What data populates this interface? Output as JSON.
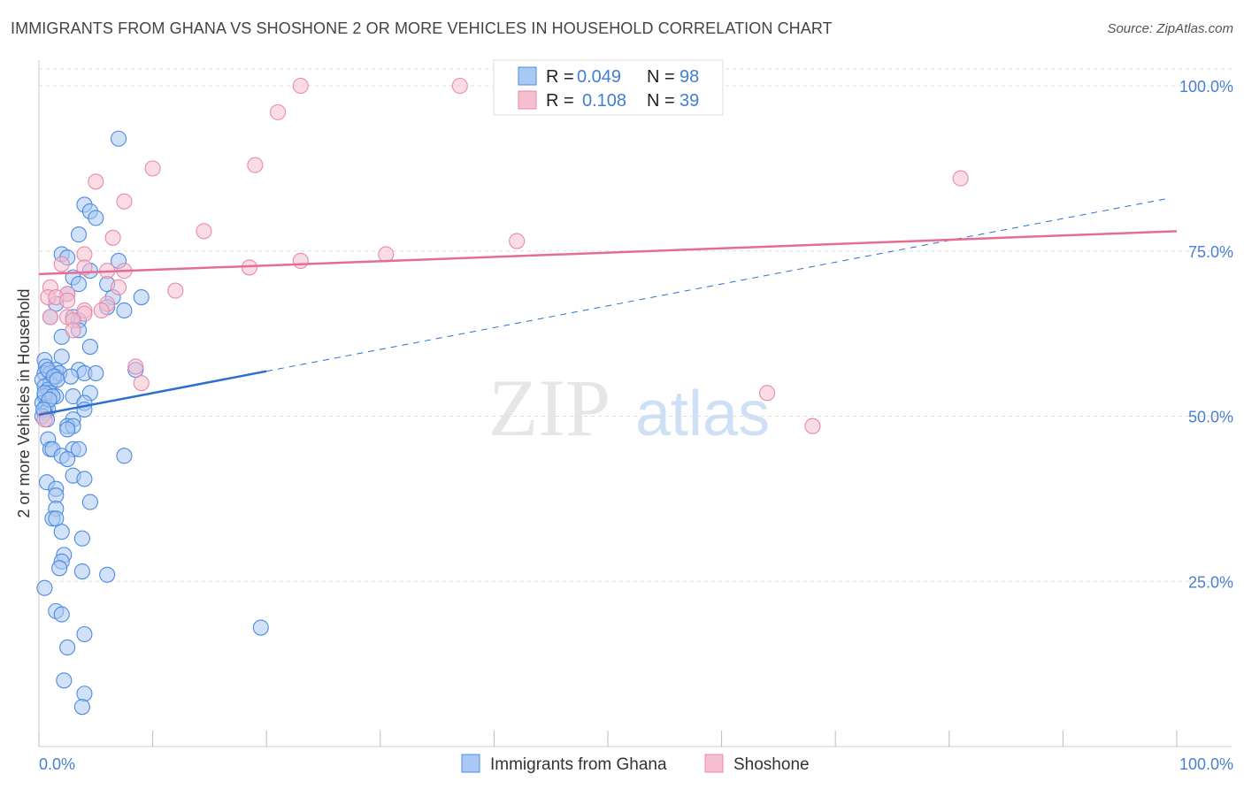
{
  "title": "IMMIGRANTS FROM GHANA VS SHOSHONE 2 OR MORE VEHICLES IN HOUSEHOLD CORRELATION CHART",
  "source": "Source: ZipAtlas.com",
  "watermark": {
    "zip": "ZIP",
    "atlas": "atlas"
  },
  "colors": {
    "blue_fill": "#a9c8f3",
    "blue_stroke": "#4d8be0",
    "blue_line": "#2c6fd1",
    "pink_fill": "#f6bfd0",
    "pink_stroke": "#e98aa9",
    "pink_line": "#e46d98",
    "grid": "#dddddd",
    "tick_label": "#4a7fd0"
  },
  "legend": {
    "r_label": "R =",
    "n_label": "N =",
    "items": [
      {
        "name": "Immigrants from Ghana",
        "r": "0.049",
        "n": "98",
        "color": "blue"
      },
      {
        "name": "Shoshone",
        "r": "0.108",
        "n": "39",
        "color": "pink"
      }
    ]
  },
  "chart_data": {
    "type": "scatter",
    "title": "IMMIGRANTS FROM GHANA VS SHOSHONE 2 OR MORE VEHICLES IN HOUSEHOLD CORRELATION CHART",
    "xlabel": "",
    "ylabel": "2 or more Vehicles in Household",
    "xlim": [
      0,
      100
    ],
    "ylim": [
      0,
      103
    ],
    "x_tick_labels": [
      "0.0%",
      "100.0%"
    ],
    "y_ticks": [
      25,
      50,
      75,
      100
    ],
    "y_tick_labels": [
      "25.0%",
      "50.0%",
      "75.0%",
      "100.0%"
    ],
    "grid": true,
    "series": [
      {
        "name": "Immigrants from Ghana",
        "color": "blue",
        "trend": {
          "x_solid": [
            0,
            20
          ],
          "y_solid": [
            50.2,
            56.8
          ],
          "x_dash": [
            20,
            100
          ],
          "y_dash": [
            56.8,
            83
          ]
        },
        "points": [
          [
            7.0,
            92.0
          ],
          [
            4.0,
            82.0
          ],
          [
            4.5,
            81.0
          ],
          [
            5.0,
            80.0
          ],
          [
            3.5,
            77.5
          ],
          [
            2.0,
            74.5
          ],
          [
            2.5,
            74.0
          ],
          [
            7.0,
            73.5
          ],
          [
            4.5,
            72.0
          ],
          [
            3.0,
            71.0
          ],
          [
            3.5,
            70.0
          ],
          [
            6.0,
            70.0
          ],
          [
            2.5,
            68.5
          ],
          [
            6.5,
            68.0
          ],
          [
            9.0,
            68.0
          ],
          [
            1.5,
            67.0
          ],
          [
            6.0,
            66.5
          ],
          [
            7.5,
            66.0
          ],
          [
            1.0,
            65.0
          ],
          [
            3.0,
            65.0
          ],
          [
            3.5,
            64.5
          ],
          [
            3.5,
            63.0
          ],
          [
            2.0,
            62.0
          ],
          [
            4.5,
            60.5
          ],
          [
            2.0,
            59.0
          ],
          [
            0.5,
            58.5
          ],
          [
            0.6,
            57.5
          ],
          [
            1.5,
            57.0
          ],
          [
            3.5,
            57.0
          ],
          [
            4.0,
            56.5
          ],
          [
            5.0,
            56.5
          ],
          [
            8.5,
            57.0
          ],
          [
            0.5,
            56.5
          ],
          [
            1.0,
            56.5
          ],
          [
            1.5,
            56.0
          ],
          [
            0.3,
            55.5
          ],
          [
            1.0,
            55.0
          ],
          [
            0.5,
            54.5
          ],
          [
            0.8,
            54.0
          ],
          [
            1.0,
            53.5
          ],
          [
            1.5,
            53.0
          ],
          [
            3.0,
            53.0
          ],
          [
            4.5,
            53.5
          ],
          [
            0.5,
            53.0
          ],
          [
            4.0,
            52.0
          ],
          [
            0.3,
            52.0
          ],
          [
            0.6,
            51.5
          ],
          [
            0.8,
            51.0
          ],
          [
            0.5,
            50.5
          ],
          [
            0.3,
            50.0
          ],
          [
            4.0,
            51.0
          ],
          [
            3.0,
            49.5
          ],
          [
            2.5,
            48.5
          ],
          [
            3.0,
            48.5
          ],
          [
            2.5,
            48.0
          ],
          [
            0.8,
            46.5
          ],
          [
            1.0,
            45.0
          ],
          [
            1.2,
            45.0
          ],
          [
            3.0,
            45.0
          ],
          [
            3.5,
            45.0
          ],
          [
            2.0,
            44.0
          ],
          [
            7.5,
            44.0
          ],
          [
            2.5,
            43.5
          ],
          [
            3.0,
            41.0
          ],
          [
            4.0,
            40.5
          ],
          [
            0.7,
            40.0
          ],
          [
            1.5,
            39.0
          ],
          [
            1.5,
            38.0
          ],
          [
            4.5,
            37.0
          ],
          [
            1.5,
            36.0
          ],
          [
            1.2,
            34.5
          ],
          [
            1.5,
            34.5
          ],
          [
            2.0,
            32.5
          ],
          [
            3.8,
            31.5
          ],
          [
            2.2,
            29.0
          ],
          [
            2.0,
            28.0
          ],
          [
            1.8,
            27.0
          ],
          [
            3.8,
            26.5
          ],
          [
            6.0,
            26.0
          ],
          [
            0.5,
            24.0
          ],
          [
            1.5,
            20.5
          ],
          [
            2.0,
            20.0
          ],
          [
            19.5,
            18.0
          ],
          [
            4.0,
            17.0
          ],
          [
            2.5,
            15.0
          ],
          [
            2.2,
            10.0
          ],
          [
            4.0,
            8.0
          ],
          [
            3.8,
            6.0
          ],
          [
            0.8,
            57.0
          ],
          [
            1.8,
            56.5
          ],
          [
            1.3,
            56.0
          ],
          [
            0.5,
            53.5
          ],
          [
            1.2,
            53.0
          ],
          [
            0.9,
            52.5
          ],
          [
            0.4,
            51.0
          ],
          [
            2.8,
            56.0
          ],
          [
            1.6,
            55.5
          ],
          [
            0.7,
            49.5
          ]
        ]
      },
      {
        "name": "Shoshone",
        "color": "pink",
        "trend": {
          "x_solid": [
            0,
            100
          ],
          "y_solid": [
            71.5,
            78
          ]
        },
        "points": [
          [
            23.0,
            100.0
          ],
          [
            37.0,
            100.0
          ],
          [
            21.0,
            96.0
          ],
          [
            10.0,
            87.5
          ],
          [
            19.0,
            88.0
          ],
          [
            5.0,
            85.5
          ],
          [
            81.0,
            86.0
          ],
          [
            7.5,
            82.5
          ],
          [
            14.5,
            78.0
          ],
          [
            6.5,
            77.0
          ],
          [
            4.0,
            74.5
          ],
          [
            30.5,
            74.5
          ],
          [
            42.0,
            76.5
          ],
          [
            23.0,
            73.5
          ],
          [
            2.0,
            73.0
          ],
          [
            4.0,
            72.5
          ],
          [
            18.5,
            72.5
          ],
          [
            7.5,
            72.0
          ],
          [
            6.0,
            72.0
          ],
          [
            1.0,
            69.5
          ],
          [
            12.0,
            69.0
          ],
          [
            2.5,
            68.5
          ],
          [
            0.8,
            68.0
          ],
          [
            7.0,
            69.5
          ],
          [
            1.5,
            68.0
          ],
          [
            6.0,
            67.0
          ],
          [
            4.0,
            66.0
          ],
          [
            5.5,
            66.0
          ],
          [
            1.0,
            65.0
          ],
          [
            2.5,
            65.0
          ],
          [
            4.0,
            65.5
          ],
          [
            3.0,
            64.5
          ],
          [
            3.0,
            63.0
          ],
          [
            8.5,
            57.5
          ],
          [
            9.0,
            55.0
          ],
          [
            64.0,
            53.5
          ],
          [
            68.0,
            48.5
          ],
          [
            0.5,
            49.5
          ],
          [
            2.5,
            67.5
          ]
        ]
      }
    ]
  }
}
